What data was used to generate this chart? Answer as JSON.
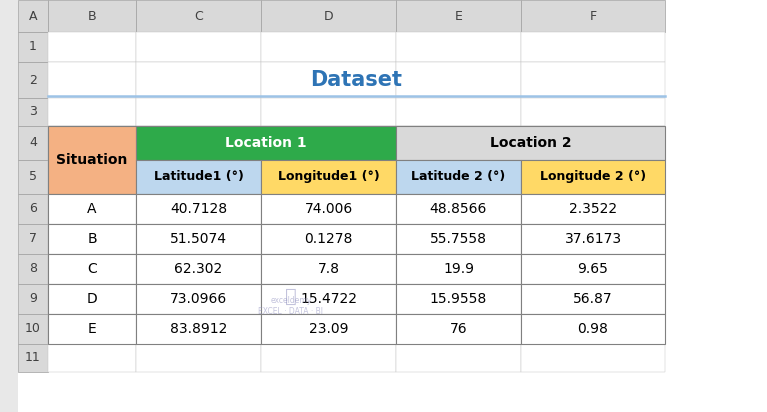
{
  "title": "Dataset",
  "title_color": "#2E74B5",
  "title_fontsize": 15,
  "col_letters": [
    "A",
    "B",
    "C",
    "D",
    "E",
    "F"
  ],
  "row_numbers": [
    "1",
    "2",
    "3",
    "4",
    "5",
    "6",
    "7",
    "8",
    "9",
    "10",
    "11"
  ],
  "header_row1": [
    "Situation",
    "Location 1",
    "",
    "Location 2",
    ""
  ],
  "header_row2": [
    "",
    "Latitude1 (°)",
    "Longitude1 (°)",
    "Latitude 2 (°)",
    "Longitude 2 (°)"
  ],
  "data_rows": [
    [
      "A",
      "40.7128",
      "74.006",
      "48.8566",
      "2.3522"
    ],
    [
      "B",
      "51.5074",
      "0.1278",
      "55.7558",
      "37.6173"
    ],
    [
      "C",
      "62.302",
      "7.8",
      "19.9",
      "9.65"
    ],
    [
      "D",
      "73.0966",
      "15.4722",
      "15.9558",
      "56.87"
    ],
    [
      "E",
      "83.8912",
      "23.09",
      "76",
      "0.98"
    ]
  ],
  "color_situation_header": "#F4B183",
  "color_location1_header": "#2EAA4A",
  "color_location2_header": "#D9D9D9",
  "color_lat1": "#BDD7EE",
  "color_lon1": "#FFD966",
  "color_lat2": "#BDD7EE",
  "color_lon2": "#FFD966",
  "color_grid_line": "#808080",
  "spreadsheet_bg": "#FFFFFF",
  "col_header_bg": "#D9D9D9",
  "watermark_text": "exceldemy\nEXCEL · DATA · BI",
  "underline_color": "#9DC3E6"
}
